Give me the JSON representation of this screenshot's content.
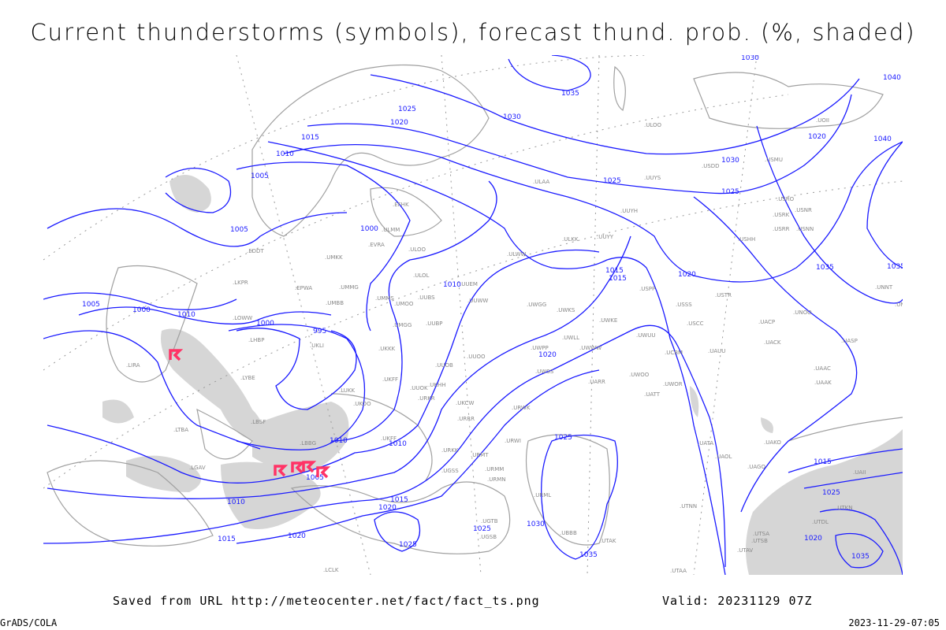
{
  "title": "Current thunderstorms (symbols), forecast thund. prob. (%, shaded)",
  "footer": {
    "saved_from": "Saved from URL http://meteocenter.net/fact/fact_ts.png",
    "valid": "Valid: 20231129 07Z",
    "credit": "GrADS/COLA",
    "timestamp": "2023-11-29-07:05"
  },
  "colors": {
    "isobar": "#1a1aff",
    "coastline": "#a0a0a0",
    "shading": "#d4d4d4",
    "thunderstorm_symbol": "#ff3366"
  },
  "isobar_labels": [
    "1030",
    "1035",
    "1040",
    "1025",
    "1020",
    "1030",
    "1015",
    "1010",
    "1005",
    "1005",
    "1000",
    "995",
    "1000",
    "1005",
    "1000",
    "1010",
    "1010",
    "1015",
    "1015",
    "1020",
    "1025",
    "1030",
    "1035",
    "1040",
    "1025",
    "1020",
    "1015",
    "1010",
    "1020",
    "1025",
    "1020",
    "1025",
    "1030",
    "1035",
    "1015",
    "1010",
    "1015",
    "1020",
    "1025",
    "1010",
    "1005",
    "1020",
    "1035",
    "1025",
    "1035"
  ],
  "stations": [
    "ULOO",
    "UOII",
    "USDD",
    "USMU",
    "UUYS",
    "ULAA",
    "UUYH",
    "USRO",
    "USRK",
    "USRR",
    "USNN",
    "USNR",
    "USHH",
    "ULKK",
    "UUYY",
    "EFHK",
    "ULOO",
    "EVRA",
    "ULMM",
    "UMKK",
    "EDDT",
    "ULOL",
    "UUEM",
    "ULWW",
    "EPWA",
    "UMMG",
    "UMMS",
    "UMOO",
    "UUBS",
    "UUWW",
    "UWGG",
    "UWKS",
    "USPP",
    "USSS",
    "USTR",
    "UNNT",
    "UNBB",
    "LKPR",
    "LOWW",
    "UMBB",
    "UMGG",
    "UUBP",
    "UWKE",
    "UWWW",
    "UWUU",
    "USCC",
    "UACP",
    "UNOO",
    "LHBP",
    "UKLI",
    "UKKK",
    "UUOO",
    "UUOB",
    "UWPP",
    "UWLL",
    "UCBM",
    "UAUU",
    "UACK",
    "UASP",
    "LIRA",
    "LYBE",
    "UKFF",
    "UUOK",
    "UKHH",
    "UWSS",
    "UWOO",
    "UWOR",
    "UAAC",
    "UAAK",
    "LUKK",
    "URKR",
    "UKOO",
    "UKCW",
    "URWK",
    "UATT",
    "UARR",
    "LBSF",
    "LBBG",
    "UKFF",
    "URRR",
    "URWI",
    "UATA",
    "UAOL",
    "UAKO",
    "URMT",
    "URKK",
    "UGSS",
    "URMM",
    "URMN",
    "UAGO",
    "UTNN",
    "UTSA",
    "UTSB",
    "UTAV",
    "UTAK",
    "UBBB",
    "UGTB",
    "UGSB",
    "UAII",
    "URML",
    "LTBA",
    "LGAV",
    "UTAA",
    "LCLK",
    "UTDL",
    "UTKN"
  ],
  "thunderstorm_symbols": 5
}
